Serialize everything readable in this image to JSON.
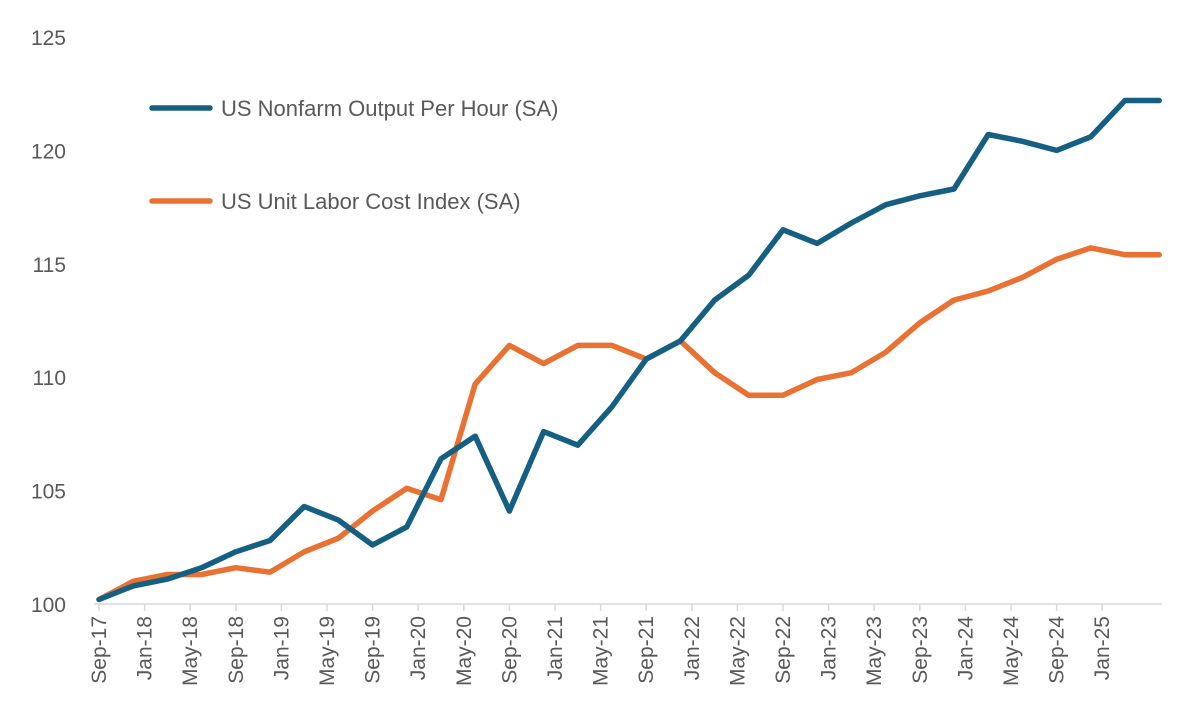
{
  "chart_data": {
    "type": "line",
    "title": "",
    "xlabel": "",
    "ylabel": "",
    "ylim": [
      100,
      125
    ],
    "yticks": [
      100,
      105,
      110,
      115,
      120,
      125
    ],
    "grid": false,
    "legend_position": "top-left",
    "x": [
      "Sep-17",
      "Dec-17",
      "Mar-18",
      "Jun-18",
      "Sep-18",
      "Dec-18",
      "Mar-19",
      "Jun-19",
      "Sep-19",
      "Dec-19",
      "Mar-20",
      "Jun-20",
      "Sep-20",
      "Dec-20",
      "Mar-21",
      "Jun-21",
      "Sep-21",
      "Dec-21",
      "Mar-22",
      "Jun-22",
      "Sep-22",
      "Dec-22",
      "Mar-23",
      "Jun-23",
      "Sep-23",
      "Dec-23",
      "Mar-24",
      "Jun-24",
      "Sep-24",
      "Dec-24",
      "Mar-25",
      "Jun-25"
    ],
    "xtick_labels": [
      "Sep-17",
      "Jan-18",
      "May-18",
      "Sep-18",
      "Jan-19",
      "May-19",
      "Sep-19",
      "Jan-20",
      "May-20",
      "Sep-20",
      "Jan-21",
      "May-21",
      "Sep-21",
      "Jan-22",
      "May-22",
      "Sep-22",
      "Jan-23",
      "May-23",
      "Sep-23",
      "Jan-24",
      "May-24",
      "Sep-24",
      "Jan-25"
    ],
    "series": [
      {
        "name": "US Nonfarm Output Per Hour (SA)",
        "color": "#156082",
        "values": [
          100.2,
          100.8,
          101.1,
          101.6,
          102.3,
          102.8,
          104.3,
          103.7,
          102.6,
          103.4,
          106.4,
          107.4,
          104.1,
          107.6,
          107.0,
          108.7,
          110.8,
          111.6,
          113.4,
          114.5,
          116.5,
          115.9,
          116.8,
          117.6,
          118.0,
          118.3,
          120.7,
          120.4,
          120.0,
          120.6,
          122.2,
          122.2
        ]
      },
      {
        "name": "US Unit Labor Cost Index (SA)",
        "color": "#E97132",
        "values": [
          100.2,
          101.0,
          101.3,
          101.3,
          101.6,
          101.4,
          102.3,
          102.9,
          104.1,
          105.1,
          104.6,
          109.7,
          111.4,
          110.6,
          111.4,
          111.4,
          110.8,
          111.6,
          110.2,
          109.2,
          109.2,
          109.9,
          110.2,
          111.1,
          112.4,
          113.4,
          113.8,
          114.4,
          115.2,
          115.7,
          115.4,
          115.4
        ]
      }
    ]
  }
}
